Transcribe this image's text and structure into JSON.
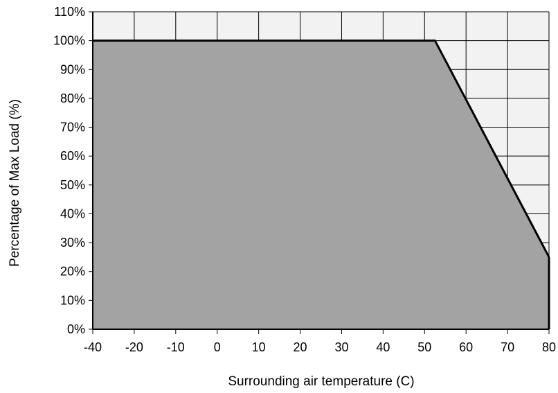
{
  "chart_data": {
    "type": "area",
    "title": "",
    "xlabel": "Surrounding air temperature (C)",
    "ylabel": "Percentage of Max Load (%)",
    "x_tick_labels": [
      "-40",
      "-20",
      "-10",
      "0",
      "10",
      "20",
      "30",
      "40",
      "50",
      "60",
      "70",
      "80"
    ],
    "y_tick_labels": [
      "0%",
      "10%",
      "20%",
      "30%",
      "40%",
      "50%",
      "60%",
      "70%",
      "80%",
      "90%",
      "100%",
      "110%"
    ],
    "xlim": [
      -40,
      80
    ],
    "ylim": [
      0,
      110
    ],
    "grid": true,
    "legend": "none",
    "series": [
      {
        "x": [
          -40,
          50,
          80
        ],
        "y": [
          100,
          100,
          25
        ]
      }
    ],
    "colors": {
      "fill": "#a3a3a3",
      "line": "#000000",
      "plot_background": "#f2f2f2",
      "grid": "#000000"
    }
  }
}
